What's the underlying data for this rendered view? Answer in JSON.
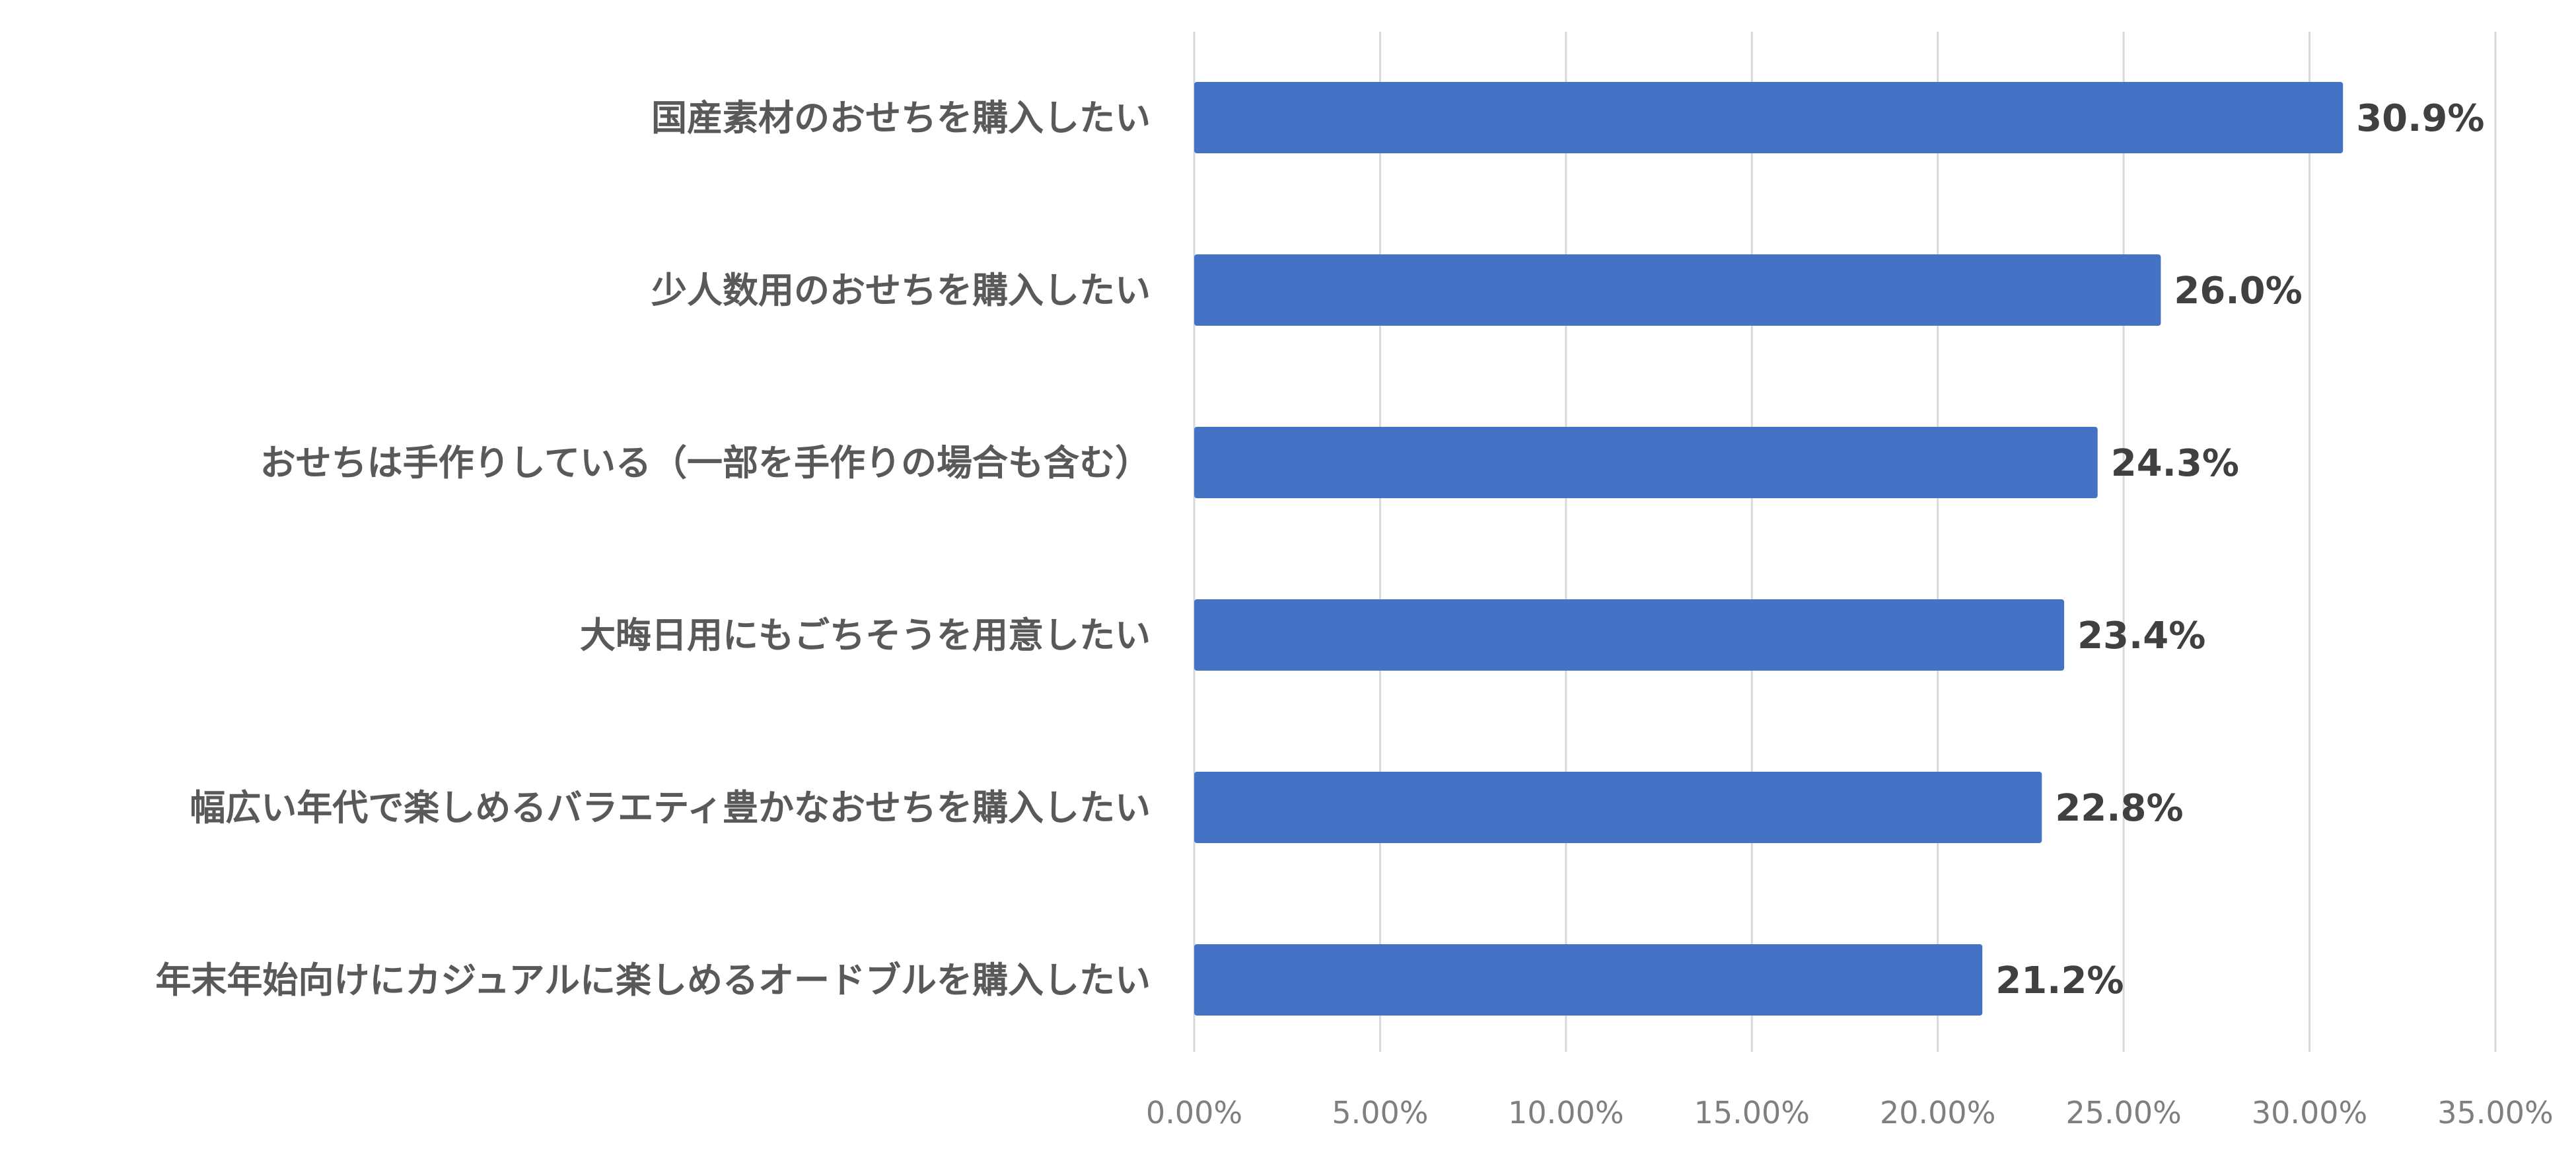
{
  "chart_data": {
    "type": "bar",
    "orientation": "horizontal",
    "categories": [
      "国産素材のおせちを購入したい",
      "少人数用のおせちを購入したい",
      "おせちは手作りしている（一部を手作りの場合も含む）",
      "大晦日用にもごちそうを用意したい",
      "幅広い年代で楽しめるバラエティ豊かなおせちを購入したい",
      "年末年始向けにカジュアルに楽しめるオードブルを購入したい"
    ],
    "values": [
      30.9,
      26.0,
      24.3,
      23.4,
      22.8,
      21.2
    ],
    "value_labels": [
      "30.9%",
      "26.0%",
      "24.3%",
      "23.4%",
      "22.8%",
      "21.2%"
    ],
    "xlim": [
      0,
      35
    ],
    "x_ticks": [
      0,
      5,
      10,
      15,
      20,
      25,
      30,
      35
    ],
    "x_tick_labels": [
      "0.00%",
      "5.00%",
      "10.00%",
      "15.00%",
      "20.00%",
      "25.00%",
      "30.00%",
      "35.00%"
    ],
    "title": "",
    "xlabel": "",
    "ylabel": "",
    "grid": true,
    "legend": "none",
    "bar_color": "#4472C4",
    "gridline_color": "#D9D9D9"
  }
}
